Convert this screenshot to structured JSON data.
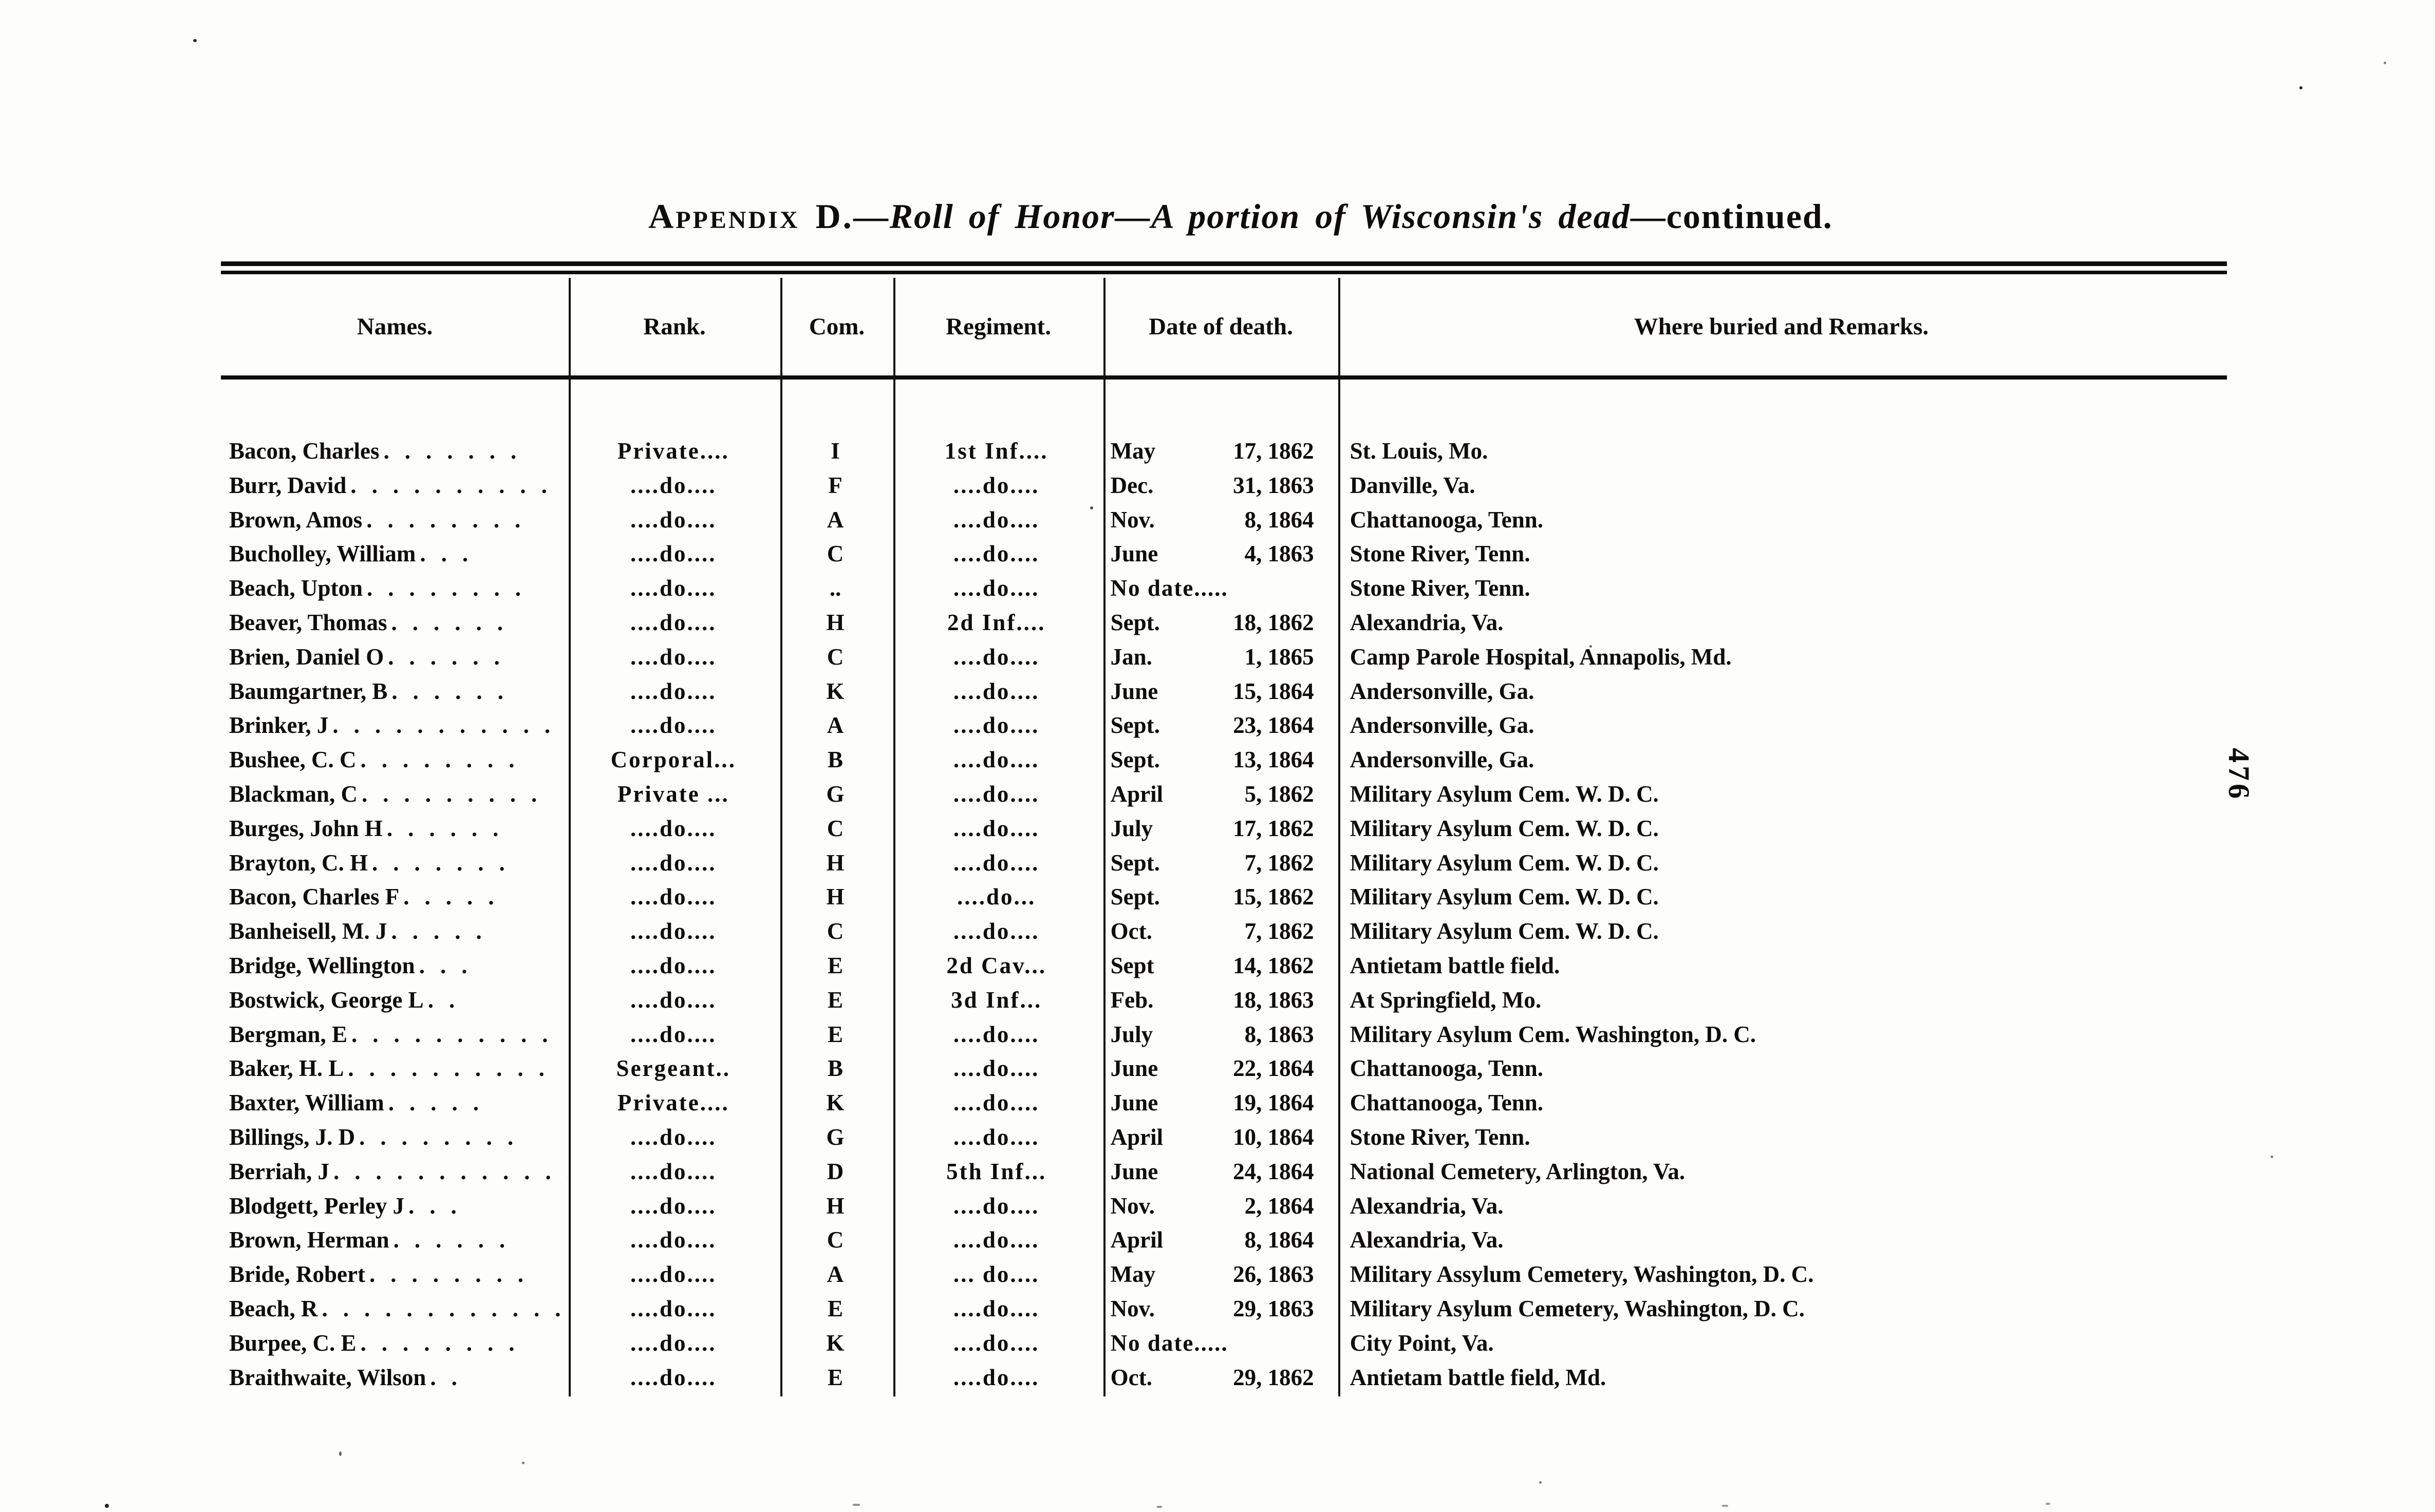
{
  "colors": {
    "paper": "#fdfdfb",
    "ink": "#0e0d0b"
  },
  "page": {
    "folio_number": "476"
  },
  "title": {
    "prefix": "Appendix D.",
    "italic": "—Roll of Honor—A portion of Wisconsin's dead",
    "suffix": "—continued."
  },
  "table": {
    "columns": [
      "Names.",
      "Rank.",
      "Com.",
      "Regiment.",
      "Date of death.",
      "Where buried and Remarks."
    ],
    "rows": [
      {
        "name": "Bacon, Charles.......",
        "rank": "Private....",
        "com": "I",
        "regiment": "1st Inf....",
        "date": {
          "m": "May",
          "d": "17",
          "tail": ", 1862"
        },
        "where": "St. Louis, Mo."
      },
      {
        "name": "Burr, David..........",
        "rank": "....do....",
        "com": "F",
        "regiment": "....do....",
        "date": {
          "m": "Dec.",
          "d": "31",
          "tail": ", 1863"
        },
        "where": "Danville, Va."
      },
      {
        "name": "Brown, Amos........",
        "rank": "....do....",
        "com": "A",
        "regiment": "....do....",
        "date": {
          "m": "Nov.",
          "d": "8",
          "tail": ", 1864"
        },
        "where": "Chattanooga, Tenn."
      },
      {
        "name": "Bucholley, William...",
        "rank": "....do....",
        "com": "C",
        "regiment": "....do....",
        "date": {
          "m": "June",
          "d": "4",
          "tail": ", 1863"
        },
        "where": "Stone River, Tenn."
      },
      {
        "name": "Beach, Upton........",
        "rank": "....do....",
        "com": "..",
        "regiment": "....do....",
        "date": {
          "raw": "No date....."
        },
        "where": "Stone River, Tenn."
      },
      {
        "name": "Beaver, Thomas......",
        "rank": "....do....",
        "com": "H",
        "regiment": "2d Inf....",
        "date": {
          "m": "Sept.",
          "d": "18",
          "tail": ", 1862"
        },
        "where": "Alexandria, Va."
      },
      {
        "name": "Brien, Daniel O......",
        "rank": "....do....",
        "com": "C",
        "regiment": "....do....",
        "date": {
          "m": "Jan.",
          "d": "1",
          "tail": ", 1865"
        },
        "where": "Camp Parole Hospital, Annapolis, Md."
      },
      {
        "name": "Baumgartner, B......",
        "rank": "....do....",
        "com": "K",
        "regiment": "....do....",
        "date": {
          "m": "June",
          "d": "15",
          "tail": ", 1864"
        },
        "where": "Andersonville, Ga."
      },
      {
        "name": "Brinker, J...........",
        "rank": "....do....",
        "com": "A",
        "regiment": "....do....",
        "date": {
          "m": "Sept.",
          "d": "23",
          "tail": ", 1864"
        },
        "where": "Andersonville, Ga."
      },
      {
        "name": "Bushee, C. C........",
        "rank": "Corporal...",
        "com": "B",
        "regiment": "....do....",
        "date": {
          "m": "Sept.",
          "d": "13",
          "tail": ", 1864"
        },
        "where": "Andersonville, Ga."
      },
      {
        "name": "Blackman, C.........",
        "rank": "Private ...",
        "com": "G",
        "regiment": "....do....",
        "date": {
          "m": "April",
          "d": "5",
          "tail": ", 1862"
        },
        "where": "Military Asylum Cem. W. D. C."
      },
      {
        "name": "Burges, John H......",
        "rank": "....do....",
        "com": "C",
        "regiment": "....do....",
        "date": {
          "m": "July",
          "d": "17",
          "tail": ", 1862"
        },
        "where": "Military Asylum Cem. W. D. C."
      },
      {
        "name": "Brayton, C. H.......",
        "rank": "....do....",
        "com": "H",
        "regiment": "....do....",
        "date": {
          "m": "Sept.",
          "d": "7",
          "tail": ", 1862"
        },
        "where": "Military Asylum Cem. W. D. C."
      },
      {
        "name": "Bacon, Charles F.....",
        "rank": "....do....",
        "com": "H",
        "regiment": "....do...",
        "date": {
          "m": "Sept.",
          "d": "15",
          "tail": ", 1862"
        },
        "where": "Military Asylum Cem. W. D. C."
      },
      {
        "name": "Banheisell, M. J.....",
        "rank": "....do....",
        "com": "C",
        "regiment": "....do....",
        "date": {
          "m": "Oct.",
          "d": "7",
          "tail": ", 1862"
        },
        "where": "Military Asylum Cem. W. D. C."
      },
      {
        "name": "Bridge, Wellington...",
        "rank": "....do....",
        "com": "E",
        "regiment": "2d Cav...",
        "date": {
          "m": "Sept",
          "d": "14",
          "tail": ", 1862"
        },
        "where": "Antietam battle field."
      },
      {
        "name": "Bostwick, George L..",
        "rank": "....do....",
        "com": "E",
        "regiment": "3d Inf...",
        "date": {
          "m": "Feb.",
          "d": "18",
          "tail": ", 1863"
        },
        "where": "At Springfield, Mo."
      },
      {
        "name": "Bergman, E..........",
        "rank": "....do....",
        "com": "E",
        "regiment": "....do....",
        "date": {
          "m": "July",
          "d": "8",
          "tail": ", 1863"
        },
        "where": "Military Asylum Cem. Washington, D. C."
      },
      {
        "name": "Baker, H. L..........",
        "rank": "Sergeant..",
        "com": "B",
        "regiment": "....do....",
        "date": {
          "m": "June",
          "d": "22",
          "tail": ", 1864"
        },
        "where": "Chattanooga, Tenn."
      },
      {
        "name": "Baxter, William.....",
        "rank": "Private....",
        "com": "K",
        "regiment": "....do....",
        "date": {
          "m": "June",
          "d": "19",
          "tail": ", 1864"
        },
        "where": "Chattanooga, Tenn."
      },
      {
        "name": "Billings, J. D........",
        "rank": "....do....",
        "com": "G",
        "regiment": "....do....",
        "date": {
          "m": "April",
          "d": "10",
          "tail": ", 1864"
        },
        "where": "Stone River, Tenn."
      },
      {
        "name": "Berriah, J............",
        "rank": "....do....",
        "com": "D",
        "regiment": "5th Inf...",
        "date": {
          "m": "June",
          "d": "24",
          "tail": ", 1864"
        },
        "where": "National Cemetery, Arlington, Va."
      },
      {
        "name": "Blodgett, Perley J...",
        "rank": "....do....",
        "com": "H",
        "regiment": "....do....",
        "date": {
          "m": "Nov.",
          "d": "2",
          "tail": ", 1864"
        },
        "where": "Alexandria, Va."
      },
      {
        "name": "Brown, Herman......",
        "rank": "....do....",
        "com": "C",
        "regiment": "....do....",
        "date": {
          "m": "April",
          "d": "8",
          "tail": ", 1864"
        },
        "where": "Alexandria, Va."
      },
      {
        "name": "Bride, Robert........",
        "rank": "....do....",
        "com": "A",
        "regiment": "... do....",
        "date": {
          "m": "May",
          "d": "26",
          "tail": ", 1863"
        },
        "where": "Military Assylum Cemetery, Washington, D. C."
      },
      {
        "name": "Beach, R............",
        "rank": "....do....",
        "com": "E",
        "regiment": "....do....",
        "date": {
          "m": "Nov.",
          "d": "29",
          "tail": ", 1863"
        },
        "where": "Military Asylum Cemetery, Washington, D. C."
      },
      {
        "name": "Burpee, C. E........",
        "rank": "....do....",
        "com": "K",
        "regiment": "....do....",
        "date": {
          "raw": "No date....."
        },
        "where": "City Point, Va."
      },
      {
        "name": "Braithwaite, Wilson..",
        "rank": "....do....",
        "com": "E",
        "regiment": "....do....",
        "date": {
          "m": "Oct.",
          "d": "29",
          "tail": ", 1862"
        },
        "where": "Antietam battle field, Md."
      }
    ]
  }
}
